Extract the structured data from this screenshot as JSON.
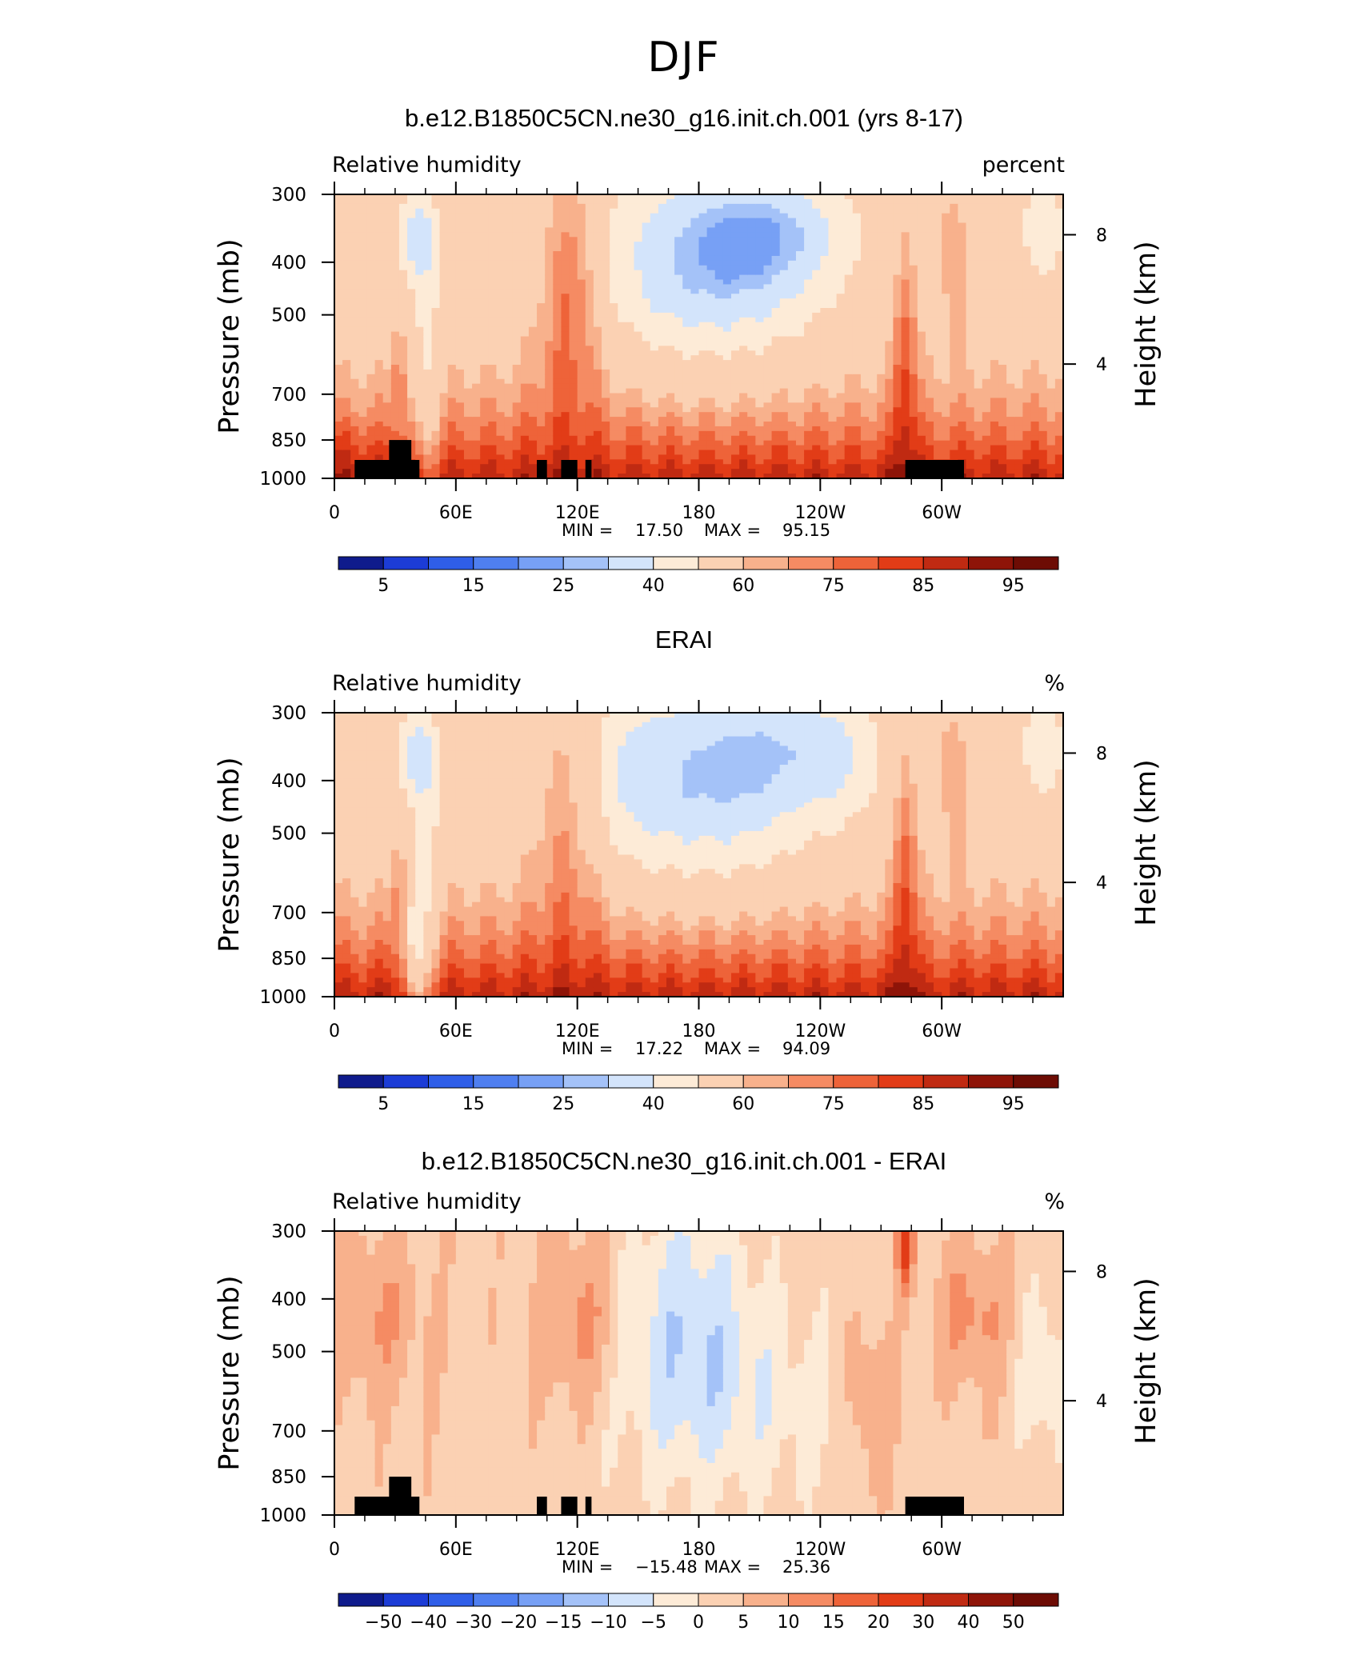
{
  "figure_title": "DJF",
  "panels": [
    {
      "title": "b.e12.B1850C5CN.ne30_g16.init.ch.001 (yrs 8-17)",
      "left_label": "Relative humidity",
      "right_label": "percent",
      "ylabel": "Pressure (mb)",
      "right_axis_label": "Height (km)",
      "min_label": "MIN =",
      "min_value": "17.50",
      "max_label": "MAX =",
      "max_value": "95.15",
      "colorbar_labels": [
        "5",
        "15",
        "25",
        "40",
        "60",
        "75",
        "85",
        "95"
      ],
      "mode": "model"
    },
    {
      "title": "ERAI",
      "left_label": "Relative humidity",
      "right_label": "%",
      "ylabel": "Pressure (mb)",
      "right_axis_label": "Height (km)",
      "min_label": "MIN =",
      "min_value": "17.22",
      "max_label": "MAX =",
      "max_value": "94.09",
      "colorbar_labels": [
        "5",
        "15",
        "25",
        "40",
        "60",
        "75",
        "85",
        "95"
      ],
      "mode": "obs"
    },
    {
      "title": "b.e12.B1850C5CN.ne30_g16.init.ch.001 - ERAI",
      "left_label": "Relative humidity",
      "right_label": "%",
      "ylabel": "Pressure (mb)",
      "right_axis_label": "Height (km)",
      "min_label": "MIN =",
      "min_value": "−15.48",
      "max_label": "MAX =",
      "max_value": "25.36",
      "colorbar_labels": [
        "−50",
        "−40",
        "−30",
        "−20",
        "−15",
        "−10",
        "−5",
        "0",
        "5",
        "10",
        "15",
        "20",
        "30",
        "40",
        "50"
      ],
      "mode": "diff"
    }
  ],
  "chart_data": {
    "type": "heatmap",
    "description_fields": "pressure-longitude cross sections of relative humidity",
    "x_ticks": [
      "0",
      "60E",
      "120E",
      "180",
      "120W",
      "60W"
    ],
    "x_range": [
      0,
      360
    ],
    "y_ticks": [
      "300",
      "400",
      "500",
      "700",
      "850",
      "1000"
    ],
    "y_range_mb": [
      1000,
      300
    ],
    "y_scale": "log",
    "right_ticks": [
      "8",
      "4"
    ],
    "colorbar_colors": [
      "#0f1b8c",
      "#1c3cd6",
      "#2f5ee8",
      "#4f7ff0",
      "#77a0f5",
      "#a4c2f8",
      "#d3e4fb",
      "#fdebd7",
      "#fbd1b3",
      "#f8b18c",
      "#f58b63",
      "#ee6339",
      "#e23c17",
      "#c02a12",
      "#8e1408",
      "#6d0c04"
    ],
    "model_levels": [
      17.5,
      95.15
    ],
    "obs_levels": [
      17.22,
      94.09
    ],
    "diff_levels": [
      -15.48,
      25.36
    ]
  }
}
